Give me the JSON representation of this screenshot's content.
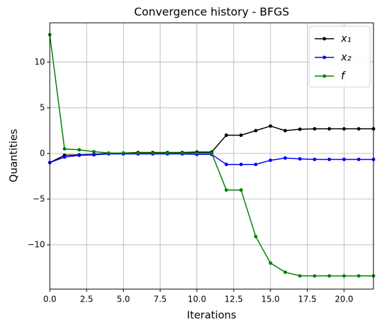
{
  "chart_data": {
    "type": "line",
    "title": "Convergence history - BFGS",
    "x_label": "Iterations",
    "y_label": "Quantities",
    "x": [
      0,
      1,
      2,
      3,
      4,
      5,
      6,
      7,
      8,
      9,
      10,
      11,
      12,
      13,
      14,
      15,
      16,
      17,
      18,
      19,
      20,
      21,
      22
    ],
    "series": [
      {
        "name": "x₁",
        "color": "#000000",
        "values": [
          -1,
          -0.2,
          -0.15,
          -0.1,
          0,
          0.05,
          0.1,
          0.1,
          0.1,
          0.1,
          0.15,
          0.15,
          2,
          2,
          2.5,
          3,
          2.5,
          2.65,
          2.7,
          2.7,
          2.7,
          2.7,
          2.7
        ]
      },
      {
        "name": "x₂",
        "color": "#0000ff",
        "values": [
          -1,
          -0.4,
          -0.2,
          -0.15,
          -0.05,
          -0.05,
          -0.05,
          -0.05,
          -0.05,
          -0.05,
          -0.1,
          -0.1,
          -1.2,
          -1.2,
          -1.2,
          -0.75,
          -0.5,
          -0.6,
          -0.65,
          -0.65,
          -0.65,
          -0.65,
          -0.65
        ]
      },
      {
        "name": "f",
        "color": "#008000",
        "values": [
          13,
          0.5,
          0.4,
          0.2,
          0.05,
          0.05,
          0.05,
          0.05,
          0.05,
          0.05,
          0.05,
          0.05,
          -4,
          -4,
          -9.1,
          -12,
          -13,
          -13.4,
          -13.4,
          -13.4,
          -13.4,
          -13.4,
          -13.4
        ]
      }
    ],
    "xlim": [
      0,
      22
    ],
    "ylim": [
      -14.85,
      14.3
    ],
    "xticks": [
      {
        "value": 0,
        "label": "0.0"
      },
      {
        "value": 2.5,
        "label": "2.5"
      },
      {
        "value": 5,
        "label": "5.0"
      },
      {
        "value": 7.5,
        "label": "7.5"
      },
      {
        "value": 10,
        "label": "10.0"
      },
      {
        "value": 12.5,
        "label": "12.5"
      },
      {
        "value": 15,
        "label": "15.0"
      },
      {
        "value": 17.5,
        "label": "17.5"
      },
      {
        "value": 20,
        "label": "20.0"
      }
    ],
    "yticks": [
      {
        "value": -10,
        "label": "−10"
      },
      {
        "value": -5,
        "label": "−5"
      },
      0,
      5,
      10
    ],
    "grid": true,
    "legend": "upper right"
  }
}
